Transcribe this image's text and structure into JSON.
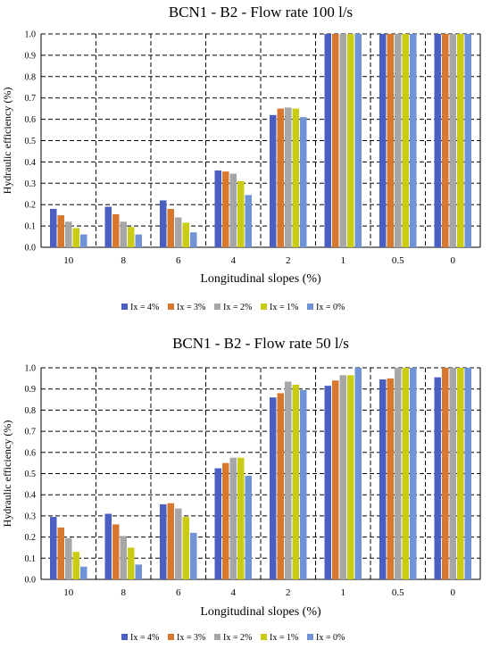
{
  "chart_data": [
    {
      "type": "bar",
      "title": "BCN1 - B2 - Flow rate 100 l/s",
      "xlabel": "Longitudinal slopes (%)",
      "ylabel": "Hydraulic efficiency (%)",
      "ylim": [
        0,
        1.0
      ],
      "yticks": [
        "0.0",
        "0.1",
        "0.2",
        "0.3",
        "0.4",
        "0.5",
        "0.6",
        "0.7",
        "0.8",
        "0.9",
        "1.0"
      ],
      "grid": "dashed",
      "legend_position": "bottom",
      "categories": [
        "10",
        "8",
        "6",
        "4",
        "2",
        "1",
        "0.5",
        "0"
      ],
      "series": [
        {
          "name": "Ix = 4%",
          "values": [
            0.18,
            0.19,
            0.22,
            0.36,
            0.62,
            1.0,
            1.0,
            1.0
          ]
        },
        {
          "name": "Ix = 3%",
          "values": [
            0.15,
            0.155,
            0.18,
            0.355,
            0.65,
            1.0,
            1.0,
            1.0
          ]
        },
        {
          "name": "Ix = 2%",
          "values": [
            0.12,
            0.12,
            0.14,
            0.345,
            0.655,
            1.0,
            1.0,
            1.0
          ]
        },
        {
          "name": "Ix = 1%",
          "values": [
            0.09,
            0.095,
            0.115,
            0.31,
            0.65,
            1.0,
            1.0,
            1.0
          ]
        },
        {
          "name": "Ix = 0%",
          "values": [
            0.06,
            0.06,
            0.07,
            0.245,
            0.61,
            1.0,
            1.0,
            1.0
          ]
        }
      ]
    },
    {
      "type": "bar",
      "title": "BCN1 - B2 - Flow rate 50 l/s",
      "xlabel": "Longitudinal slopes (%)",
      "ylabel": "Hydraulic efficiency (%)",
      "ylim": [
        0,
        1.0
      ],
      "yticks": [
        "0.0",
        "0.1",
        "0.2",
        "0.3",
        "0.4",
        "0.5",
        "0.6",
        "0.7",
        "0.8",
        "0.9",
        "1.0"
      ],
      "grid": "dashed",
      "legend_position": "bottom",
      "categories": [
        "10",
        "8",
        "6",
        "4",
        "2",
        "1",
        "0.5",
        "0"
      ],
      "series": [
        {
          "name": "Ix = 4%",
          "values": [
            0.295,
            0.31,
            0.355,
            0.525,
            0.86,
            0.915,
            0.945,
            0.955
          ]
        },
        {
          "name": "Ix = 3%",
          "values": [
            0.245,
            0.26,
            0.36,
            0.55,
            0.88,
            0.94,
            0.95,
            1.0
          ]
        },
        {
          "name": "Ix = 2%",
          "values": [
            0.195,
            0.205,
            0.335,
            0.575,
            0.935,
            0.965,
            1.0,
            1.0
          ]
        },
        {
          "name": "Ix = 1%",
          "values": [
            0.13,
            0.15,
            0.295,
            0.575,
            0.92,
            0.965,
            1.0,
            1.0
          ]
        },
        {
          "name": "Ix = 0%",
          "values": [
            0.06,
            0.07,
            0.22,
            0.49,
            0.895,
            1.0,
            1.0,
            1.0
          ]
        }
      ]
    }
  ],
  "colors": [
    "#4a5fc1",
    "#d8782e",
    "#a6a6a6",
    "#c9cc13",
    "#6f93d6"
  ]
}
